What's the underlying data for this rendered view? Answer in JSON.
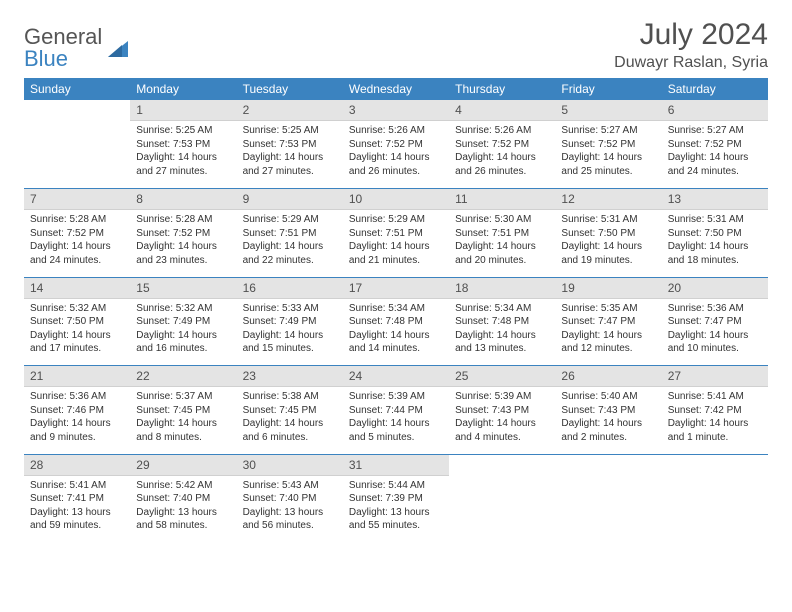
{
  "logo": {
    "text1": "General",
    "text2": "Blue"
  },
  "title": "July 2024",
  "location": "Duwayr Raslan, Syria",
  "headers": [
    "Sunday",
    "Monday",
    "Tuesday",
    "Wednesday",
    "Thursday",
    "Friday",
    "Saturday"
  ],
  "colors": {
    "header_bg": "#3b83c0",
    "header_fg": "#ffffff",
    "daynum_bg": "#e4e4e4",
    "text": "#333333"
  },
  "weeks": [
    [
      null,
      {
        "n": "1",
        "sr": "5:25 AM",
        "ss": "7:53 PM",
        "dl": "14 hours and 27 minutes."
      },
      {
        "n": "2",
        "sr": "5:25 AM",
        "ss": "7:53 PM",
        "dl": "14 hours and 27 minutes."
      },
      {
        "n": "3",
        "sr": "5:26 AM",
        "ss": "7:52 PM",
        "dl": "14 hours and 26 minutes."
      },
      {
        "n": "4",
        "sr": "5:26 AM",
        "ss": "7:52 PM",
        "dl": "14 hours and 26 minutes."
      },
      {
        "n": "5",
        "sr": "5:27 AM",
        "ss": "7:52 PM",
        "dl": "14 hours and 25 minutes."
      },
      {
        "n": "6",
        "sr": "5:27 AM",
        "ss": "7:52 PM",
        "dl": "14 hours and 24 minutes."
      }
    ],
    [
      {
        "n": "7",
        "sr": "5:28 AM",
        "ss": "7:52 PM",
        "dl": "14 hours and 24 minutes."
      },
      {
        "n": "8",
        "sr": "5:28 AM",
        "ss": "7:52 PM",
        "dl": "14 hours and 23 minutes."
      },
      {
        "n": "9",
        "sr": "5:29 AM",
        "ss": "7:51 PM",
        "dl": "14 hours and 22 minutes."
      },
      {
        "n": "10",
        "sr": "5:29 AM",
        "ss": "7:51 PM",
        "dl": "14 hours and 21 minutes."
      },
      {
        "n": "11",
        "sr": "5:30 AM",
        "ss": "7:51 PM",
        "dl": "14 hours and 20 minutes."
      },
      {
        "n": "12",
        "sr": "5:31 AM",
        "ss": "7:50 PM",
        "dl": "14 hours and 19 minutes."
      },
      {
        "n": "13",
        "sr": "5:31 AM",
        "ss": "7:50 PM",
        "dl": "14 hours and 18 minutes."
      }
    ],
    [
      {
        "n": "14",
        "sr": "5:32 AM",
        "ss": "7:50 PM",
        "dl": "14 hours and 17 minutes."
      },
      {
        "n": "15",
        "sr": "5:32 AM",
        "ss": "7:49 PM",
        "dl": "14 hours and 16 minutes."
      },
      {
        "n": "16",
        "sr": "5:33 AM",
        "ss": "7:49 PM",
        "dl": "14 hours and 15 minutes."
      },
      {
        "n": "17",
        "sr": "5:34 AM",
        "ss": "7:48 PM",
        "dl": "14 hours and 14 minutes."
      },
      {
        "n": "18",
        "sr": "5:34 AM",
        "ss": "7:48 PM",
        "dl": "14 hours and 13 minutes."
      },
      {
        "n": "19",
        "sr": "5:35 AM",
        "ss": "7:47 PM",
        "dl": "14 hours and 12 minutes."
      },
      {
        "n": "20",
        "sr": "5:36 AM",
        "ss": "7:47 PM",
        "dl": "14 hours and 10 minutes."
      }
    ],
    [
      {
        "n": "21",
        "sr": "5:36 AM",
        "ss": "7:46 PM",
        "dl": "14 hours and 9 minutes."
      },
      {
        "n": "22",
        "sr": "5:37 AM",
        "ss": "7:45 PM",
        "dl": "14 hours and 8 minutes."
      },
      {
        "n": "23",
        "sr": "5:38 AM",
        "ss": "7:45 PM",
        "dl": "14 hours and 6 minutes."
      },
      {
        "n": "24",
        "sr": "5:39 AM",
        "ss": "7:44 PM",
        "dl": "14 hours and 5 minutes."
      },
      {
        "n": "25",
        "sr": "5:39 AM",
        "ss": "7:43 PM",
        "dl": "14 hours and 4 minutes."
      },
      {
        "n": "26",
        "sr": "5:40 AM",
        "ss": "7:43 PM",
        "dl": "14 hours and 2 minutes."
      },
      {
        "n": "27",
        "sr": "5:41 AM",
        "ss": "7:42 PM",
        "dl": "14 hours and 1 minute."
      }
    ],
    [
      {
        "n": "28",
        "sr": "5:41 AM",
        "ss": "7:41 PM",
        "dl": "13 hours and 59 minutes."
      },
      {
        "n": "29",
        "sr": "5:42 AM",
        "ss": "7:40 PM",
        "dl": "13 hours and 58 minutes."
      },
      {
        "n": "30",
        "sr": "5:43 AM",
        "ss": "7:40 PM",
        "dl": "13 hours and 56 minutes."
      },
      {
        "n": "31",
        "sr": "5:44 AM",
        "ss": "7:39 PM",
        "dl": "13 hours and 55 minutes."
      },
      null,
      null,
      null
    ]
  ],
  "labels": {
    "sunrise": "Sunrise: ",
    "sunset": "Sunset: ",
    "daylight": "Daylight: "
  }
}
